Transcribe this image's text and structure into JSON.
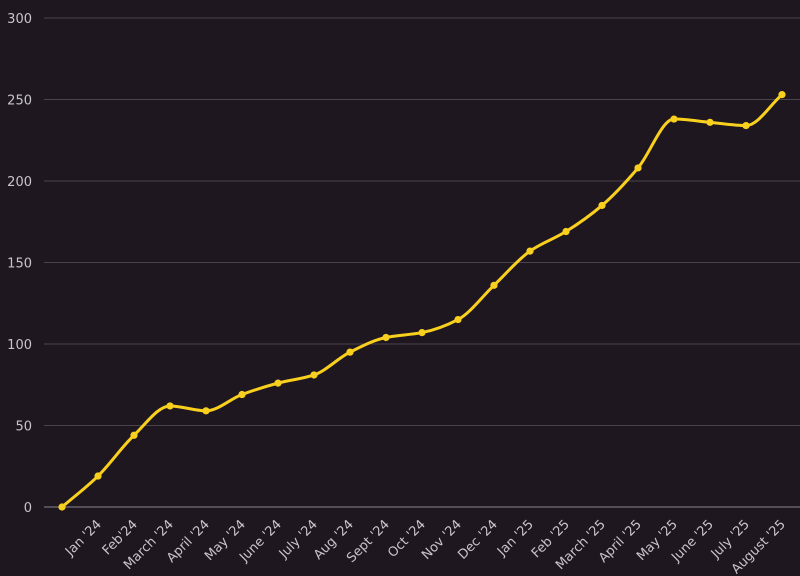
{
  "chart_data": {
    "type": "line",
    "title": "",
    "xlabel": "",
    "ylabel": "",
    "categories": [
      "",
      "Jan '24",
      "Feb'24",
      "March '24",
      "April '24",
      "May '24",
      "June '24",
      "July '24",
      "Aug '24",
      "Sept '24",
      "Oct '24",
      "Nov '24",
      "Dec '24",
      "Jan '25",
      "Feb '25",
      "March '25",
      "April '25",
      "May '25",
      "June '25",
      "July '25",
      "August '25"
    ],
    "series": [
      {
        "values": [
          0,
          19,
          44,
          62,
          59,
          69,
          76,
          81,
          95,
          104,
          107,
          115,
          136,
          157,
          169,
          185,
          208,
          238,
          236,
          234,
          253
        ]
      }
    ],
    "ylim": [
      0,
      300
    ],
    "yticks": [
      0,
      50,
      100,
      150,
      200,
      250,
      300
    ],
    "grid": true,
    "colors": {
      "background": "#1e1720",
      "line": "#fad01e",
      "grid": "#4a434d",
      "text": "#c9c3cc"
    }
  }
}
